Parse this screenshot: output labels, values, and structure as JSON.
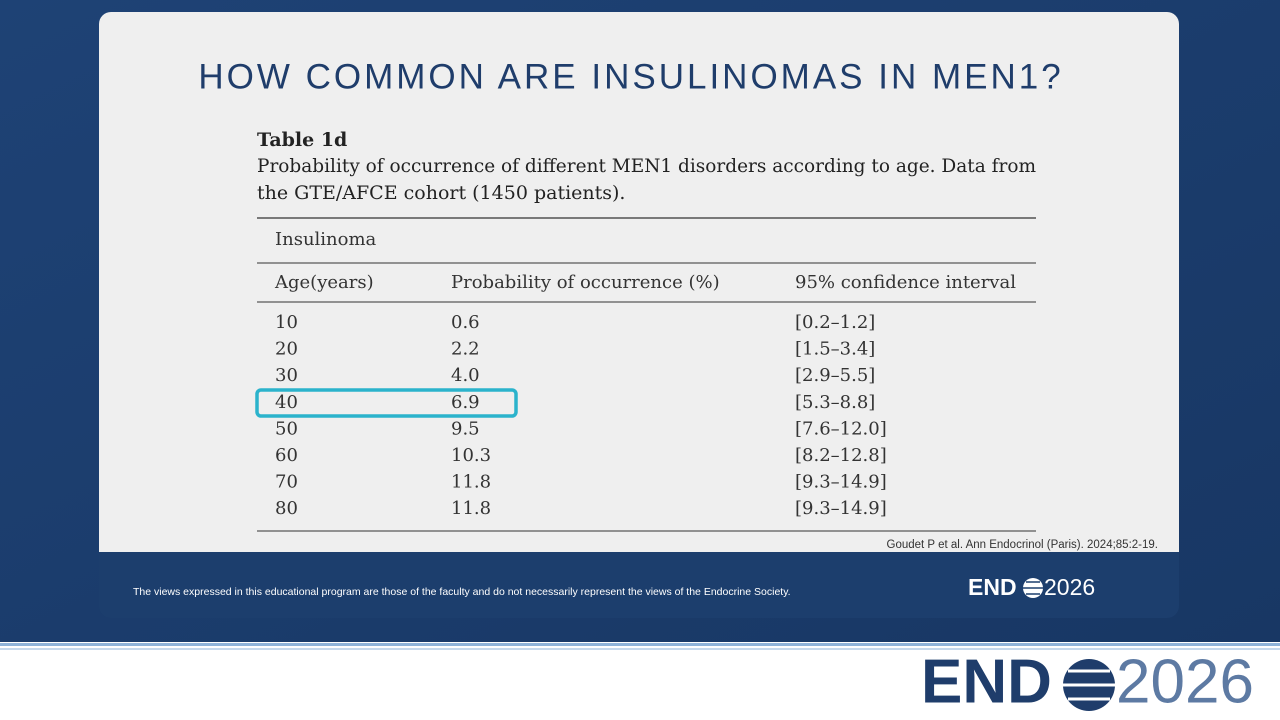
{
  "slide": {
    "title": "HOW COMMON ARE INSULINOMAS IN MEN1?",
    "table": {
      "label": "Table 1d",
      "caption_lines": [
        "Probability of occurrence of different MEN1 disorders according to age. Data from",
        "the GTE/AFCE cohort (1450 patients)."
      ],
      "group": "Insulinoma",
      "headers": [
        "Age(years)",
        "Probability of occurrence (%)",
        "95% confidence interval"
      ],
      "rows": [
        [
          "10",
          "0.6",
          "[0.2–1.2]"
        ],
        [
          "20",
          "2.2",
          "[1.5–3.4]"
        ],
        [
          "30",
          "4.0",
          "[2.9–5.5]"
        ],
        [
          "40",
          "6.9",
          "[5.3–8.8]"
        ],
        [
          "50",
          "9.5",
          "[7.6–12.0]"
        ],
        [
          "60",
          "10.3",
          "[8.2–12.8]"
        ],
        [
          "70",
          "11.8",
          "[9.3–14.9]"
        ],
        [
          "80",
          "11.8",
          "[9.3–14.9]"
        ]
      ]
    },
    "citation": "Goudet P et al. Ann Endocrinol (Paris). 2024;85:2-19.",
    "disclaimer": "The views expressed in this educational program are those of the faculty and do not necessarily represent the views of the Endocrine Society.",
    "logo": {
      "prefix": "END",
      "year": "2026"
    }
  }
}
